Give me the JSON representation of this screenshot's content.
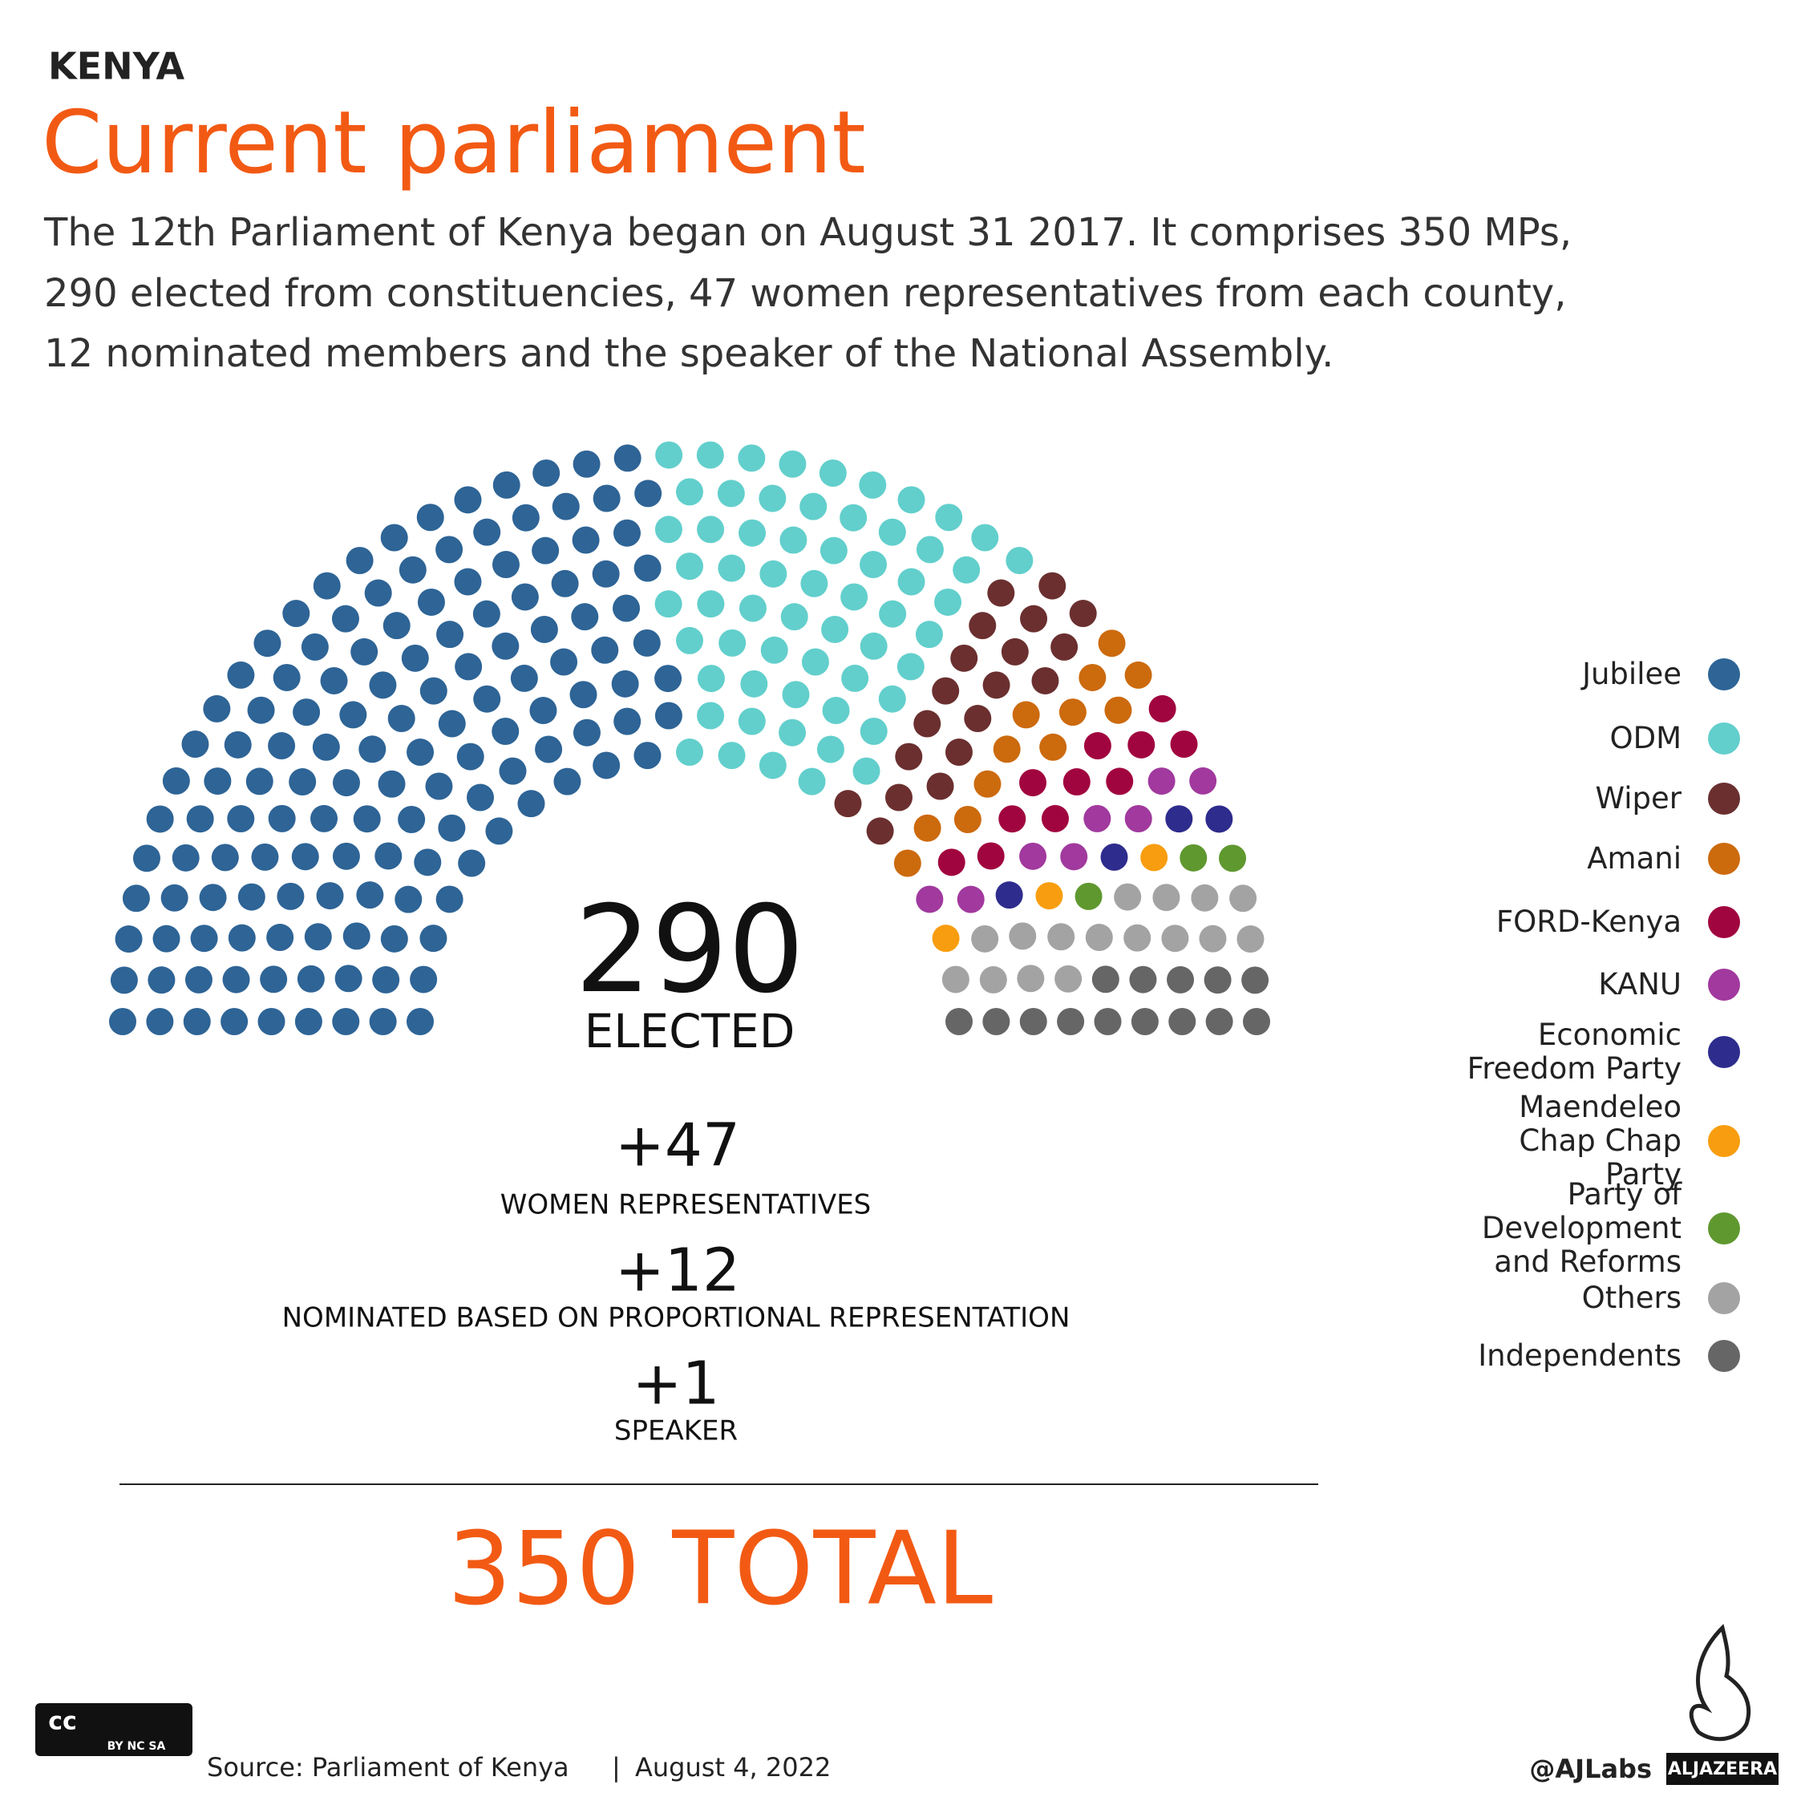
{
  "header": {
    "kicker": "KENYA",
    "title": "Current parliament",
    "description": [
      "The 12th Parliament of Kenya began on August 31 2017. It comprises 350 MPs,",
      "290 elected from constituencies, 47 women representatives from each county,",
      "12 nominated members and the speaker of the National Assembly."
    ]
  },
  "chart_data": {
    "type": "parliament",
    "legend_position": "right",
    "series": [
      {
        "name": "Jubilee",
        "color": "#2e6496",
        "values": [
          140
        ]
      },
      {
        "name": "ODM",
        "color": "#62cfcc",
        "values": [
          60
        ]
      },
      {
        "name": "Wiper",
        "color": "#6b2f2f",
        "values": [
          19
        ]
      },
      {
        "name": "Amani",
        "color": "#cc6a0e",
        "values": [
          12
        ]
      },
      {
        "name": "FORD-Kenya",
        "color": "#a1053f",
        "values": [
          11
        ]
      },
      {
        "name": "KANU",
        "color": "#a1399e",
        "values": [
          8
        ]
      },
      {
        "name": "Economic Freedom Party",
        "color": "#2e2c8c",
        "values": [
          4
        ]
      },
      {
        "name": "Maendeleo Chap Chap Party",
        "color": "#f89d0f",
        "values": [
          3
        ]
      },
      {
        "name": "Party of Development and Reforms",
        "color": "#5f982f",
        "values": [
          3
        ]
      },
      {
        "name": "Others",
        "color": "#a3a3a3",
        "values": [
          16
        ]
      },
      {
        "name": "Independents",
        "color": "#666666",
        "values": [
          14
        ]
      }
    ]
  },
  "summary": {
    "elected": "290",
    "elected_label": "ELECTED",
    "extras": [
      {
        "value": "+47",
        "label": "WOMEN REPRESENTATIVES"
      },
      {
        "value": "+12",
        "label": "NOMINATED BASED ON PROPORTIONAL REPRESENTATION"
      },
      {
        "value": "+1",
        "label": "SPEAKER"
      }
    ],
    "total": "350 TOTAL"
  },
  "footer": {
    "license": "cc",
    "license_terms": "BY  NC  SA",
    "source": "Source: Parliament of Kenya",
    "date": "August 4, 2022",
    "handle": "@AJLabs",
    "brand": "ALJAZEERA"
  }
}
